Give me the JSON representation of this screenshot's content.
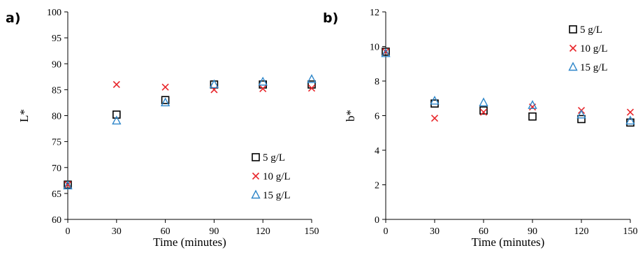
{
  "chart_data": [
    {
      "type": "scatter",
      "panel_label": "a)",
      "title": "",
      "xlabel": "Time (minutes)",
      "ylabel": "L*",
      "xlim": [
        0,
        150
      ],
      "ylim": [
        60,
        100
      ],
      "xticks": [
        0,
        30,
        60,
        90,
        120,
        150
      ],
      "yticks": [
        60,
        65,
        70,
        75,
        80,
        85,
        90,
        95,
        100
      ],
      "grid": false,
      "legend_position": "bottom-right",
      "series": [
        {
          "name": "5 g/L",
          "marker": "square",
          "color": "#000000",
          "x": [
            0,
            30,
            60,
            90,
            120,
            150
          ],
          "y": [
            66.7,
            80.2,
            83.0,
            86.0,
            86.0,
            86.0
          ]
        },
        {
          "name": "10 g/L",
          "marker": "cross",
          "color": "#e8262b",
          "x": [
            0,
            30,
            60,
            90,
            120,
            150
          ],
          "y": [
            66.7,
            86.0,
            85.5,
            85.0,
            85.2,
            85.3
          ]
        },
        {
          "name": "15 g/L",
          "marker": "triangle",
          "color": "#2e86c9",
          "x": [
            0,
            30,
            60,
            90,
            120,
            150
          ],
          "y": [
            66.5,
            79.0,
            82.5,
            86.0,
            86.5,
            87.0
          ]
        }
      ]
    },
    {
      "type": "scatter",
      "panel_label": "b)",
      "title": "",
      "xlabel": "Time (minutes)",
      "ylabel": "b*",
      "xlim": [
        0,
        150
      ],
      "ylim": [
        0,
        12
      ],
      "xticks": [
        0,
        30,
        60,
        90,
        120,
        150
      ],
      "yticks": [
        0,
        2,
        4,
        6,
        8,
        10,
        12
      ],
      "grid": false,
      "legend_position": "top-right",
      "series": [
        {
          "name": "5 g/L",
          "marker": "square",
          "color": "#000000",
          "x": [
            0,
            30,
            60,
            90,
            120,
            150
          ],
          "y": [
            9.7,
            6.7,
            6.3,
            5.95,
            5.8,
            5.6
          ]
        },
        {
          "name": "10 g/L",
          "marker": "cross",
          "color": "#e8262b",
          "x": [
            0,
            30,
            60,
            90,
            120,
            150
          ],
          "y": [
            9.7,
            5.85,
            6.2,
            6.5,
            6.3,
            6.2
          ]
        },
        {
          "name": "15 g/L",
          "marker": "triangle",
          "color": "#2e86c9",
          "x": [
            0,
            30,
            60,
            90,
            120,
            150
          ],
          "y": [
            9.6,
            6.85,
            6.75,
            6.6,
            6.05,
            5.7
          ]
        }
      ]
    }
  ]
}
